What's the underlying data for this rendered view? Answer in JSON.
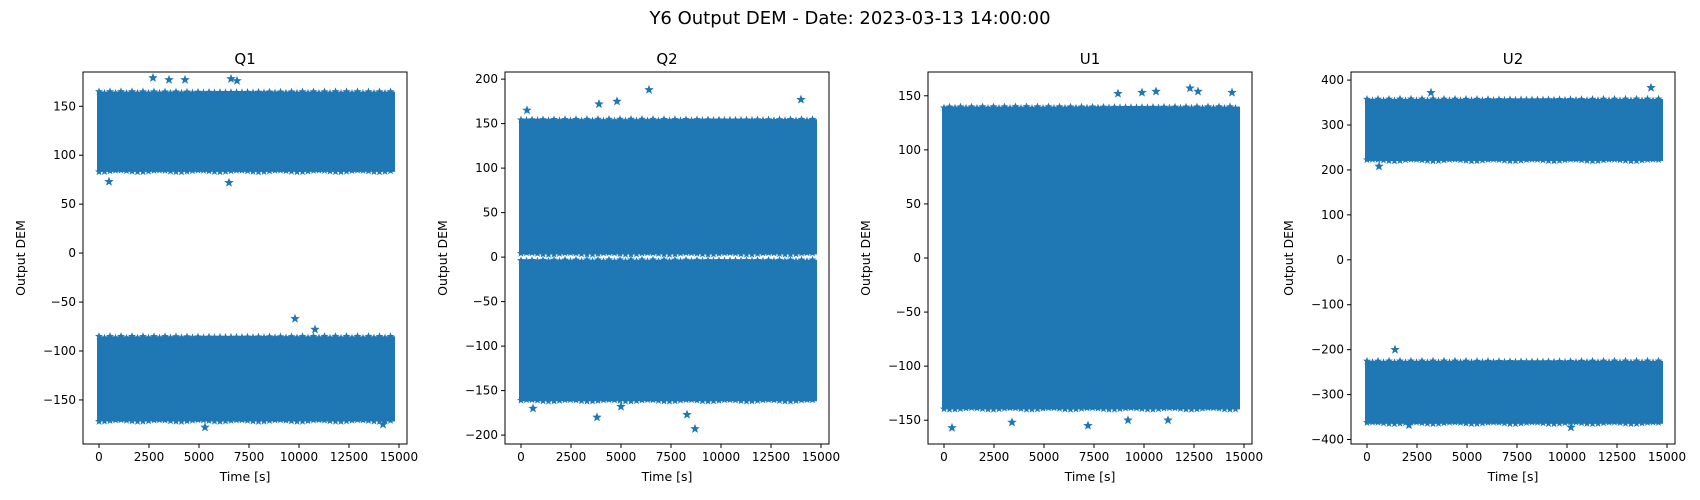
{
  "figure_title": "Y6 Output DEM - Date: 2023-03-13 14:00:00",
  "colors": {
    "series": "#1f77b4",
    "axes": "#000000",
    "background": "#ffffff"
  },
  "chart_data": [
    {
      "type": "scatter",
      "marker": "star",
      "title": "Q1",
      "xlabel": "Time [s]",
      "ylabel": "Output DEM",
      "xlim": [
        -800,
        15400
      ],
      "ylim": [
        -195,
        185
      ],
      "xticks": [
        0,
        2500,
        5000,
        7500,
        10000,
        12500,
        15000
      ],
      "yticks": [
        -150,
        -100,
        -50,
        0,
        50,
        100,
        150
      ],
      "series": [
        {
          "values": [
            {
              "x": [
                0,
                14700
              ],
              "y": [
                83,
                165
              ]
            },
            {
              "x": [
                0,
                14700
              ],
              "y": [
                -172,
                -85
              ]
            }
          ]
        }
      ],
      "outliers": [
        {
          "x": 2700,
          "y": 179
        },
        {
          "x": 3500,
          "y": 177
        },
        {
          "x": 4300,
          "y": 177
        },
        {
          "x": 6600,
          "y": 178
        },
        {
          "x": 6900,
          "y": 176
        },
        {
          "x": 500,
          "y": 73
        },
        {
          "x": 6500,
          "y": 72
        },
        {
          "x": 9800,
          "y": -67
        },
        {
          "x": 10800,
          "y": -78
        },
        {
          "x": 5300,
          "y": -178
        },
        {
          "x": 14200,
          "y": -175
        }
      ]
    },
    {
      "type": "scatter",
      "marker": "star",
      "title": "Q2",
      "xlabel": "Time [s]",
      "ylabel": "Output DEM",
      "xlim": [
        -800,
        15400
      ],
      "ylim": [
        -210,
        208
      ],
      "xticks": [
        0,
        2500,
        5000,
        7500,
        10000,
        12500,
        15000
      ],
      "yticks": [
        -200,
        -150,
        -100,
        -50,
        0,
        50,
        100,
        150,
        200
      ],
      "series": [
        {
          "values": [
            {
              "x": [
                0,
                14700
              ],
              "y": [
                3,
                155
              ]
            },
            {
              "x": [
                0,
                14700
              ],
              "y": [
                -162,
                -3
              ]
            }
          ]
        }
      ],
      "outliers": [
        {
          "x": 6400,
          "y": 188
        },
        {
          "x": 14000,
          "y": 177
        },
        {
          "x": 4800,
          "y": 175
        },
        {
          "x": 3900,
          "y": 172
        },
        {
          "x": 300,
          "y": 165
        },
        {
          "x": 8700,
          "y": -193
        },
        {
          "x": 3800,
          "y": -180
        },
        {
          "x": 8300,
          "y": -177
        },
        {
          "x": 600,
          "y": -170
        },
        {
          "x": 5000,
          "y": -168
        }
      ]
    },
    {
      "type": "scatter",
      "marker": "star",
      "title": "U1",
      "xlabel": "Time [s]",
      "ylabel": "Output DEM",
      "xlim": [
        -800,
        15400
      ],
      "ylim": [
        -172,
        172
      ],
      "xticks": [
        0,
        2500,
        5000,
        7500,
        10000,
        12500,
        15000
      ],
      "yticks": [
        -150,
        -100,
        -50,
        0,
        50,
        100,
        150
      ],
      "series": [
        {
          "values": [
            {
              "x": [
                0,
                14700
              ],
              "y": [
                -140,
                140
              ]
            }
          ]
        }
      ],
      "outliers": [
        {
          "x": 12300,
          "y": 157
        },
        {
          "x": 12700,
          "y": 154
        },
        {
          "x": 14400,
          "y": 153
        },
        {
          "x": 9900,
          "y": 153
        },
        {
          "x": 10600,
          "y": 154
        },
        {
          "x": 8700,
          "y": 152
        },
        {
          "x": 400,
          "y": -157
        },
        {
          "x": 7200,
          "y": -155
        },
        {
          "x": 3400,
          "y": -152
        },
        {
          "x": 11200,
          "y": -150
        },
        {
          "x": 9200,
          "y": -150
        }
      ]
    },
    {
      "type": "scatter",
      "marker": "star",
      "title": "U2",
      "xlabel": "Time [s]",
      "ylabel": "Output DEM",
      "xlim": [
        -800,
        15400
      ],
      "ylim": [
        -410,
        418
      ],
      "xticks": [
        0,
        2500,
        5000,
        7500,
        10000,
        12500,
        15000
      ],
      "yticks": [
        -400,
        -300,
        -200,
        -100,
        0,
        100,
        200,
        300,
        400
      ],
      "series": [
        {
          "values": [
            {
              "x": [
                0,
                14700
              ],
              "y": [
                220,
                358
              ]
            },
            {
              "x": [
                0,
                14700
              ],
              "y": [
                -365,
                -225
              ]
            }
          ]
        }
      ],
      "outliers": [
        {
          "x": 14200,
          "y": 383
        },
        {
          "x": 3200,
          "y": 372
        },
        {
          "x": 1400,
          "y": -200
        },
        {
          "x": 600,
          "y": 208
        },
        {
          "x": 10200,
          "y": -373
        },
        {
          "x": 2100,
          "y": -368
        }
      ]
    }
  ]
}
